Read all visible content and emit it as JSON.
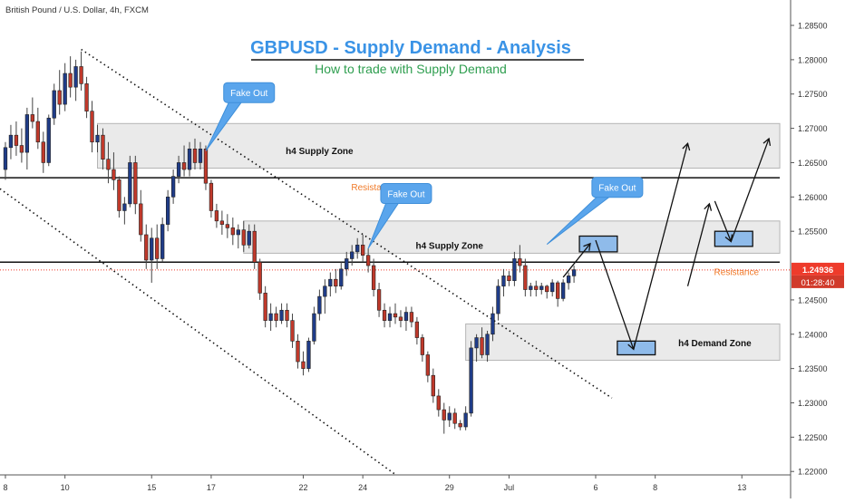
{
  "header": {
    "symbol_title": "British Pound / U.S. Dollar, 4h, FXCM"
  },
  "chart_data": {
    "type": "candlestick",
    "title": "GBPUSD - Supply Demand - Analysis",
    "subtitle": "How to trade with Supply Demand",
    "ylim": [
      1.22,
      1.29
    ],
    "y_ticks": [
      {
        "value": 1.285,
        "label": "1.28500"
      },
      {
        "value": 1.28,
        "label": "1.28000"
      },
      {
        "value": 1.275,
        "label": "1.27500"
      },
      {
        "value": 1.27,
        "label": "1.27000"
      },
      {
        "value": 1.265,
        "label": "1.26500"
      },
      {
        "value": 1.26,
        "label": "1.26000"
      },
      {
        "value": 1.255,
        "label": "1.25500"
      },
      {
        "value": 1.245,
        "label": "1.24500"
      },
      {
        "value": 1.24,
        "label": "1.24000"
      },
      {
        "value": 1.235,
        "label": "1.23500"
      },
      {
        "value": 1.23,
        "label": "1.23000"
      },
      {
        "value": 1.225,
        "label": "1.22500"
      },
      {
        "value": 1.22,
        "label": "1.22000"
      }
    ],
    "x_ticks": [
      {
        "value": 0,
        "label": "8"
      },
      {
        "value": 11,
        "label": "10"
      },
      {
        "value": 27,
        "label": "15"
      },
      {
        "value": 38,
        "label": "17"
      },
      {
        "value": 55,
        "label": "22"
      },
      {
        "value": 66,
        "label": "24"
      },
      {
        "value": 82,
        "label": "29"
      },
      {
        "value": 93,
        "label": "Jul"
      },
      {
        "value": 109,
        "label": "6"
      },
      {
        "value": 120,
        "label": "8"
      },
      {
        "value": 136,
        "label": "13"
      }
    ],
    "x_range": [
      -1,
      145
    ],
    "bull_color": "#1f3c88",
    "bear_color": "#c0392b",
    "current_price": {
      "value": 1.24936,
      "label": "1.24936",
      "timer": "01:28:40",
      "color": "#ee3b2b"
    },
    "horizontal_lines": [
      {
        "value": 1.2628,
        "label": "Resistance",
        "label_x": 68
      },
      {
        "value": 1.2505,
        "label": "Resistance",
        "label_x": 135
      }
    ],
    "zones": [
      {
        "label": "h4 Supply Zone",
        "from": 1.2642,
        "to": 1.2707,
        "x0": 17,
        "x1": 143,
        "label_x": 58,
        "label_y": 1.2668
      },
      {
        "label": "h4 Supply Zone",
        "from": 1.2518,
        "to": 1.2565,
        "x0": 44,
        "x1": 143,
        "label_x": 82,
        "label_y": 1.253
      },
      {
        "label": "h4 Demand Zone",
        "from": 1.2362,
        "to": 1.2415,
        "x0": 85,
        "x1": 143,
        "label_x": 131,
        "label_y": 1.2388
      }
    ],
    "callouts": [
      {
        "label": "Fake Out",
        "x": 45,
        "y": 1.2752,
        "tip_x": 37,
        "tip_y": 1.2667
      },
      {
        "label": "Fake Out",
        "x": 74,
        "y": 1.2605,
        "tip_x": 67,
        "tip_y": 1.2525
      },
      {
        "label": "Fake Out",
        "x": 113,
        "y": 1.2614,
        "tip_x": 100,
        "tip_y": 1.2531
      }
    ],
    "highlight_boxes": [
      {
        "x0": 106,
        "x1": 113,
        "y0": 1.252,
        "y1": 1.2543
      },
      {
        "x0": 113,
        "x1": 120,
        "y0": 1.237,
        "y1": 1.239
      },
      {
        "x0": 131,
        "x1": 138,
        "y0": 1.2528,
        "y1": 1.255
      }
    ],
    "trendlines": [
      {
        "points": [
          [
            14,
            1.2815
          ],
          [
            112,
            1.2307
          ]
        ]
      },
      {
        "points": [
          [
            -1,
            1.2612
          ],
          [
            73,
            1.219
          ]
        ]
      }
    ],
    "projection_arrows": [
      {
        "points": [
          [
            103,
            1.2483
          ],
          [
            108,
            1.2532
          ]
        ]
      },
      {
        "points": [
          [
            109,
            1.2537
          ],
          [
            116,
            1.2378
          ]
        ]
      },
      {
        "points": [
          [
            116,
            1.2378
          ],
          [
            126,
            1.2678
          ]
        ]
      },
      {
        "points": [
          [
            126,
            1.247
          ],
          [
            130,
            1.259
          ]
        ]
      },
      {
        "points": [
          [
            131,
            1.2594
          ],
          [
            134,
            1.2535
          ]
        ]
      },
      {
        "points": [
          [
            134,
            1.2535
          ],
          [
            141,
            1.2685
          ]
        ]
      }
    ],
    "candles": [
      {
        "o": 1.264,
        "h": 1.268,
        "l": 1.2625,
        "c": 1.2672
      },
      {
        "o": 1.2672,
        "h": 1.2705,
        "l": 1.2655,
        "c": 1.269
      },
      {
        "o": 1.269,
        "h": 1.271,
        "l": 1.266,
        "c": 1.2675
      },
      {
        "o": 1.2675,
        "h": 1.27,
        "l": 1.265,
        "c": 1.2665
      },
      {
        "o": 1.2665,
        "h": 1.273,
        "l": 1.264,
        "c": 1.272
      },
      {
        "o": 1.272,
        "h": 1.2745,
        "l": 1.27,
        "c": 1.271
      },
      {
        "o": 1.271,
        "h": 1.273,
        "l": 1.267,
        "c": 1.268
      },
      {
        "o": 1.268,
        "h": 1.2695,
        "l": 1.2635,
        "c": 1.265
      },
      {
        "o": 1.265,
        "h": 1.272,
        "l": 1.2645,
        "c": 1.2715
      },
      {
        "o": 1.2715,
        "h": 1.2765,
        "l": 1.2705,
        "c": 1.2755
      },
      {
        "o": 1.2755,
        "h": 1.2785,
        "l": 1.272,
        "c": 1.2735
      },
      {
        "o": 1.2735,
        "h": 1.2795,
        "l": 1.2725,
        "c": 1.278
      },
      {
        "o": 1.278,
        "h": 1.2805,
        "l": 1.2745,
        "c": 1.276
      },
      {
        "o": 1.276,
        "h": 1.28,
        "l": 1.274,
        "c": 1.279
      },
      {
        "o": 1.279,
        "h": 1.2812,
        "l": 1.2755,
        "c": 1.2765
      },
      {
        "o": 1.2765,
        "h": 1.2775,
        "l": 1.2715,
        "c": 1.2725
      },
      {
        "o": 1.2725,
        "h": 1.274,
        "l": 1.2665,
        "c": 1.268
      },
      {
        "o": 1.268,
        "h": 1.2705,
        "l": 1.2665,
        "c": 1.269
      },
      {
        "o": 1.269,
        "h": 1.27,
        "l": 1.264,
        "c": 1.2655
      },
      {
        "o": 1.2655,
        "h": 1.268,
        "l": 1.262,
        "c": 1.264
      },
      {
        "o": 1.264,
        "h": 1.2665,
        "l": 1.261,
        "c": 1.2625
      },
      {
        "o": 1.2625,
        "h": 1.263,
        "l": 1.257,
        "c": 1.258
      },
      {
        "o": 1.258,
        "h": 1.26,
        "l": 1.256,
        "c": 1.259
      },
      {
        "o": 1.259,
        "h": 1.266,
        "l": 1.2585,
        "c": 1.265
      },
      {
        "o": 1.265,
        "h": 1.266,
        "l": 1.2575,
        "c": 1.259
      },
      {
        "o": 1.259,
        "h": 1.261,
        "l": 1.2535,
        "c": 1.2545
      },
      {
        "o": 1.2545,
        "h": 1.256,
        "l": 1.2495,
        "c": 1.2508
      },
      {
        "o": 1.2508,
        "h": 1.2555,
        "l": 1.2475,
        "c": 1.254
      },
      {
        "o": 1.254,
        "h": 1.256,
        "l": 1.2495,
        "c": 1.251
      },
      {
        "o": 1.251,
        "h": 1.257,
        "l": 1.2505,
        "c": 1.256
      },
      {
        "o": 1.256,
        "h": 1.261,
        "l": 1.255,
        "c": 1.26
      },
      {
        "o": 1.26,
        "h": 1.264,
        "l": 1.259,
        "c": 1.263
      },
      {
        "o": 1.263,
        "h": 1.266,
        "l": 1.262,
        "c": 1.265
      },
      {
        "o": 1.265,
        "h": 1.2675,
        "l": 1.263,
        "c": 1.264
      },
      {
        "o": 1.264,
        "h": 1.268,
        "l": 1.263,
        "c": 1.267
      },
      {
        "o": 1.267,
        "h": 1.2685,
        "l": 1.264,
        "c": 1.265
      },
      {
        "o": 1.265,
        "h": 1.268,
        "l": 1.264,
        "c": 1.267
      },
      {
        "o": 1.267,
        "h": 1.2675,
        "l": 1.261,
        "c": 1.262
      },
      {
        "o": 1.262,
        "h": 1.2625,
        "l": 1.257,
        "c": 1.258
      },
      {
        "o": 1.258,
        "h": 1.259,
        "l": 1.2555,
        "c": 1.2565
      },
      {
        "o": 1.2565,
        "h": 1.258,
        "l": 1.2545,
        "c": 1.256
      },
      {
        "o": 1.256,
        "h": 1.2575,
        "l": 1.254,
        "c": 1.2555
      },
      {
        "o": 1.2555,
        "h": 1.257,
        "l": 1.253,
        "c": 1.2545
      },
      {
        "o": 1.2545,
        "h": 1.256,
        "l": 1.2525,
        "c": 1.2552
      },
      {
        "o": 1.2552,
        "h": 1.2565,
        "l": 1.252,
        "c": 1.253
      },
      {
        "o": 1.253,
        "h": 1.256,
        "l": 1.2525,
        "c": 1.255
      },
      {
        "o": 1.255,
        "h": 1.256,
        "l": 1.2495,
        "c": 1.2505
      },
      {
        "o": 1.2505,
        "h": 1.251,
        "l": 1.245,
        "c": 1.246
      },
      {
        "o": 1.246,
        "h": 1.247,
        "l": 1.241,
        "c": 1.242
      },
      {
        "o": 1.242,
        "h": 1.2445,
        "l": 1.2405,
        "c": 1.243
      },
      {
        "o": 1.243,
        "h": 1.244,
        "l": 1.241,
        "c": 1.242
      },
      {
        "o": 1.242,
        "h": 1.2445,
        "l": 1.2415,
        "c": 1.2435
      },
      {
        "o": 1.2435,
        "h": 1.2445,
        "l": 1.241,
        "c": 1.242
      },
      {
        "o": 1.242,
        "h": 1.243,
        "l": 1.238,
        "c": 1.239
      },
      {
        "o": 1.239,
        "h": 1.24,
        "l": 1.235,
        "c": 1.236
      },
      {
        "o": 1.236,
        "h": 1.2375,
        "l": 1.234,
        "c": 1.235
      },
      {
        "o": 1.235,
        "h": 1.2395,
        "l": 1.2345,
        "c": 1.239
      },
      {
        "o": 1.239,
        "h": 1.244,
        "l": 1.2385,
        "c": 1.243
      },
      {
        "o": 1.243,
        "h": 1.2465,
        "l": 1.242,
        "c": 1.2455
      },
      {
        "o": 1.2455,
        "h": 1.248,
        "l": 1.243,
        "c": 1.247
      },
      {
        "o": 1.247,
        "h": 1.249,
        "l": 1.2455,
        "c": 1.248
      },
      {
        "o": 1.248,
        "h": 1.2495,
        "l": 1.246,
        "c": 1.247
      },
      {
        "o": 1.247,
        "h": 1.2505,
        "l": 1.2465,
        "c": 1.2495
      },
      {
        "o": 1.2495,
        "h": 1.252,
        "l": 1.2485,
        "c": 1.251
      },
      {
        "o": 1.251,
        "h": 1.253,
        "l": 1.25,
        "c": 1.252
      },
      {
        "o": 1.252,
        "h": 1.254,
        "l": 1.251,
        "c": 1.253
      },
      {
        "o": 1.253,
        "h": 1.2545,
        "l": 1.2505,
        "c": 1.2515
      },
      {
        "o": 1.2515,
        "h": 1.2525,
        "l": 1.249,
        "c": 1.25
      },
      {
        "o": 1.25,
        "h": 1.251,
        "l": 1.2455,
        "c": 1.2465
      },
      {
        "o": 1.2465,
        "h": 1.2475,
        "l": 1.2425,
        "c": 1.2435
      },
      {
        "o": 1.2435,
        "h": 1.2445,
        "l": 1.241,
        "c": 1.242
      },
      {
        "o": 1.242,
        "h": 1.244,
        "l": 1.241,
        "c": 1.243
      },
      {
        "o": 1.243,
        "h": 1.2445,
        "l": 1.2415,
        "c": 1.2425
      },
      {
        "o": 1.2425,
        "h": 1.2435,
        "l": 1.241,
        "c": 1.242
      },
      {
        "o": 1.242,
        "h": 1.244,
        "l": 1.2405,
        "c": 1.2432
      },
      {
        "o": 1.2432,
        "h": 1.244,
        "l": 1.241,
        "c": 1.2418
      },
      {
        "o": 1.2418,
        "h": 1.2425,
        "l": 1.2385,
        "c": 1.2395
      },
      {
        "o": 1.2395,
        "h": 1.24,
        "l": 1.236,
        "c": 1.237
      },
      {
        "o": 1.237,
        "h": 1.2375,
        "l": 1.233,
        "c": 1.234
      },
      {
        "o": 1.234,
        "h": 1.235,
        "l": 1.23,
        "c": 1.231
      },
      {
        "o": 1.231,
        "h": 1.232,
        "l": 1.228,
        "c": 1.229
      },
      {
        "o": 1.229,
        "h": 1.23,
        "l": 1.2255,
        "c": 1.2275
      },
      {
        "o": 1.2275,
        "h": 1.2295,
        "l": 1.2265,
        "c": 1.2285
      },
      {
        "o": 1.2285,
        "h": 1.2292,
        "l": 1.2262,
        "c": 1.227
      },
      {
        "o": 1.227,
        "h": 1.2275,
        "l": 1.226,
        "c": 1.2265
      },
      {
        "o": 1.2265,
        "h": 1.2295,
        "l": 1.226,
        "c": 1.2285
      },
      {
        "o": 1.2285,
        "h": 1.239,
        "l": 1.228,
        "c": 1.238
      },
      {
        "o": 1.238,
        "h": 1.24,
        "l": 1.236,
        "c": 1.2395
      },
      {
        "o": 1.2395,
        "h": 1.241,
        "l": 1.2365,
        "c": 1.237
      },
      {
        "o": 1.237,
        "h": 1.2405,
        "l": 1.236,
        "c": 1.24
      },
      {
        "o": 1.24,
        "h": 1.244,
        "l": 1.239,
        "c": 1.243
      },
      {
        "o": 1.243,
        "h": 1.248,
        "l": 1.242,
        "c": 1.247
      },
      {
        "o": 1.247,
        "h": 1.2495,
        "l": 1.2455,
        "c": 1.2485
      },
      {
        "o": 1.2485,
        "h": 1.2492,
        "l": 1.247,
        "c": 1.2478
      },
      {
        "o": 1.2478,
        "h": 1.252,
        "l": 1.247,
        "c": 1.251
      },
      {
        "o": 1.251,
        "h": 1.253,
        "l": 1.249,
        "c": 1.25
      },
      {
        "o": 1.25,
        "h": 1.251,
        "l": 1.2455,
        "c": 1.2465
      },
      {
        "o": 1.2465,
        "h": 1.2475,
        "l": 1.2455,
        "c": 1.247
      },
      {
        "o": 1.247,
        "h": 1.2478,
        "l": 1.2455,
        "c": 1.2465
      },
      {
        "o": 1.2465,
        "h": 1.2475,
        "l": 1.2458,
        "c": 1.247
      },
      {
        "o": 1.247,
        "h": 1.2472,
        "l": 1.2452,
        "c": 1.2462
      },
      {
        "o": 1.2462,
        "h": 1.248,
        "l": 1.2455,
        "c": 1.2475
      },
      {
        "o": 1.2475,
        "h": 1.2478,
        "l": 1.244,
        "c": 1.2452
      },
      {
        "o": 1.2452,
        "h": 1.248,
        "l": 1.2448,
        "c": 1.2475
      },
      {
        "o": 1.2475,
        "h": 1.249,
        "l": 1.2465,
        "c": 1.2485
      },
      {
        "o": 1.2485,
        "h": 1.25,
        "l": 1.2475,
        "c": 1.2494
      }
    ]
  }
}
